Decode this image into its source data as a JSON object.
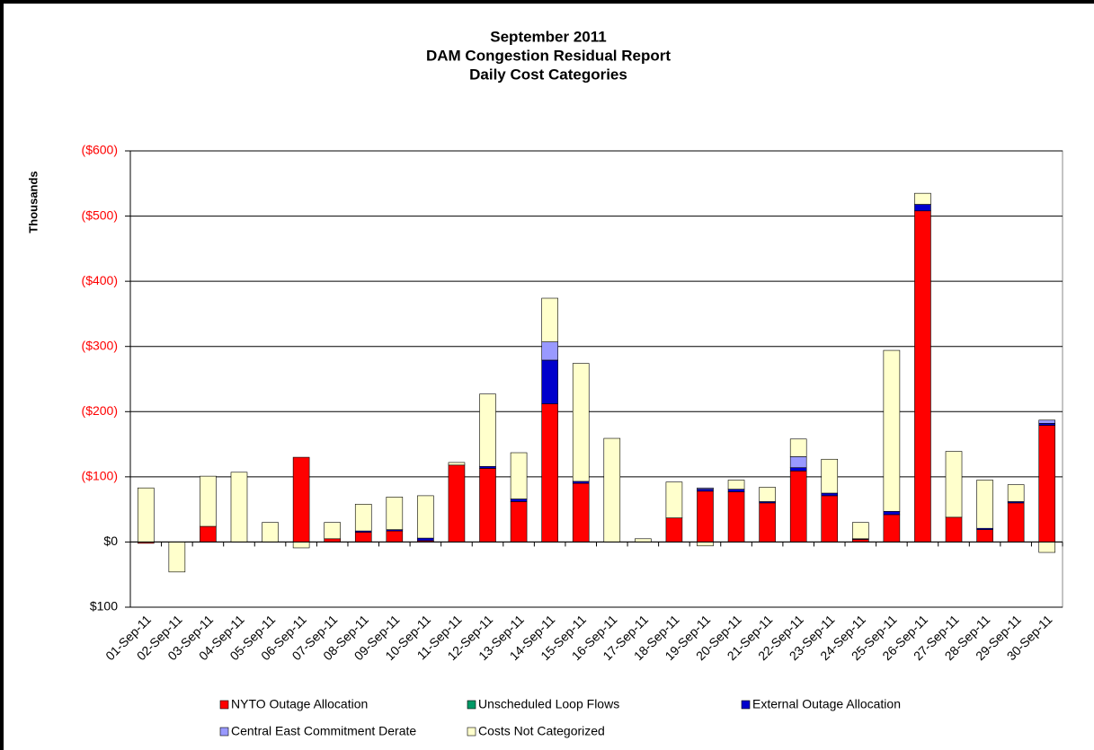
{
  "chart_data": {
    "type": "stacked_bar",
    "title": [
      "September 2011",
      "DAM Congestion Residual Report",
      "Daily Cost Categories"
    ],
    "y_label": "Thousands",
    "categories": [
      "01-Sep-11",
      "02-Sep-11",
      "03-Sep-11",
      "04-Sep-11",
      "05-Sep-11",
      "06-Sep-11",
      "07-Sep-11",
      "08-Sep-11",
      "09-Sep-11",
      "10-Sep-11",
      "11-Sep-11",
      "12-Sep-11",
      "13-Sep-11",
      "14-Sep-11",
      "15-Sep-11",
      "16-Sep-11",
      "17-Sep-11",
      "18-Sep-11",
      "19-Sep-11",
      "20-Sep-11",
      "21-Sep-11",
      "22-Sep-11",
      "23-Sep-11",
      "24-Sep-11",
      "25-Sep-11",
      "26-Sep-11",
      "27-Sep-11",
      "28-Sep-11",
      "29-Sep-11",
      "30-Sep-11"
    ],
    "series": [
      {
        "name": "NYTO Outage Allocation",
        "color": "#ff0000",
        "values": [
          2,
          0,
          -24,
          0,
          0,
          -130,
          -5,
          -15,
          -17,
          -2,
          -118,
          -113,
          -62,
          -212,
          -90,
          0,
          0,
          -37,
          -78,
          -77,
          -60,
          -109,
          -71,
          -4,
          -42,
          -508,
          -38,
          -19,
          -60,
          -179
        ]
      },
      {
        "name": "Unscheduled Loop Flows",
        "color": "#009966",
        "values": [
          0,
          0,
          0,
          0,
          0,
          0,
          0,
          0,
          0,
          0,
          0,
          0,
          0,
          0,
          0,
          0,
          0,
          0,
          0,
          0,
          0,
          0,
          0,
          0,
          0,
          0,
          0,
          0,
          0,
          0
        ]
      },
      {
        "name": "External Outage Allocation",
        "color": "#0000cc",
        "values": [
          0,
          0,
          0,
          0,
          0,
          0,
          0,
          -2,
          -2,
          -4,
          0,
          -3,
          -4,
          -67,
          -3,
          0,
          0,
          0,
          -3,
          -4,
          -2,
          -5,
          -4,
          -1,
          -5,
          -10,
          0,
          -2,
          -2,
          -3
        ]
      },
      {
        "name": "Central East Commitment Derate",
        "color": "#9999ff",
        "values": [
          0,
          0,
          0,
          0,
          0,
          0,
          0,
          0,
          0,
          0,
          0,
          0,
          0,
          -28,
          0,
          0,
          0,
          0,
          -2,
          0,
          0,
          -17,
          0,
          0,
          0,
          0,
          0,
          0,
          0,
          -5
        ]
      },
      {
        "name": "Costs Not Categorized",
        "color": "#ffffcc",
        "values": [
          -83,
          46,
          -77,
          -107,
          -30,
          9,
          -25,
          -41,
          -50,
          -65,
          -4,
          -111,
          -71,
          -67,
          -181,
          -159,
          -5,
          -55,
          6,
          -14,
          -22,
          -27,
          -52,
          -25,
          -247,
          -17,
          -101,
          -74,
          -26,
          16
        ]
      }
    ],
    "ylim": [
      100,
      -600
    ],
    "yticks": [
      {
        "value": -600,
        "label": "($600)"
      },
      {
        "value": -500,
        "label": "($500)"
      },
      {
        "value": -400,
        "label": "($400)"
      },
      {
        "value": -300,
        "label": "($300)"
      },
      {
        "value": -200,
        "label": "($200)"
      },
      {
        "value": -100,
        "label": "($100)"
      },
      {
        "value": 0,
        "label": "$0"
      },
      {
        "value": 100,
        "label": "$100"
      }
    ],
    "negative_tick_color": "#ff0000",
    "grid": true
  }
}
